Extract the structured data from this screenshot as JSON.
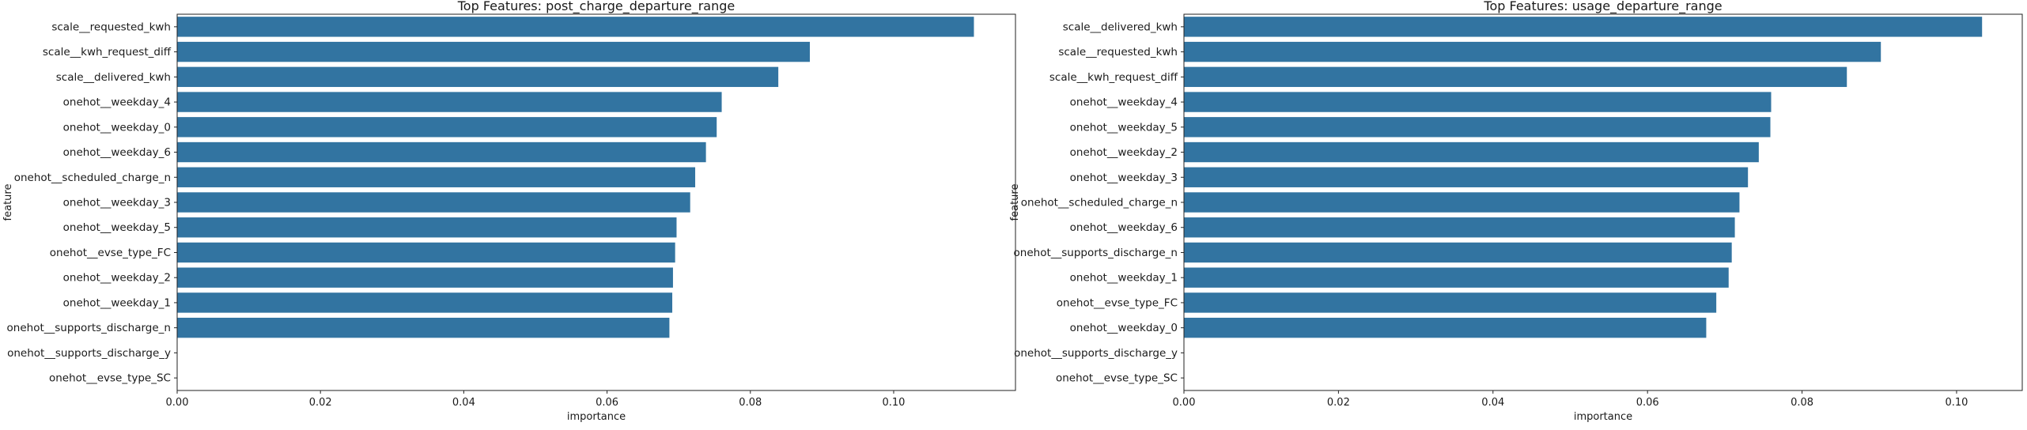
{
  "chart_data": [
    {
      "type": "bar",
      "orientation": "horizontal",
      "title": "Top Features: post_charge_departure_range",
      "xlabel": "importance",
      "ylabel": "feature",
      "xlim": [
        0,
        0.117
      ],
      "xticks": [
        "0.00",
        "0.02",
        "0.04",
        "0.06",
        "0.08",
        "0.10"
      ],
      "grid": false,
      "bar_color": "#3274a1",
      "categories": [
        "scale__requested_kwh",
        "scale__kwh_request_diff",
        "scale__delivered_kwh",
        "onehot__weekday_4",
        "onehot__weekday_0",
        "onehot__weekday_6",
        "onehot__scheduled_charge_n",
        "onehot__weekday_3",
        "onehot__weekday_5",
        "onehot__evse_type_FC",
        "onehot__weekday_2",
        "onehot__weekday_1",
        "onehot__supports_discharge_n",
        "onehot__supports_discharge_y",
        "onehot__evse_type_SC"
      ],
      "values": [
        0.1112,
        0.0883,
        0.0839,
        0.076,
        0.0753,
        0.0738,
        0.0723,
        0.0716,
        0.0697,
        0.0695,
        0.0692,
        0.0691,
        0.0687,
        0,
        0
      ]
    },
    {
      "type": "bar",
      "orientation": "horizontal",
      "title": "Top Features: usage_departure_range",
      "xlabel": "importance",
      "ylabel": "feature",
      "xlim": [
        0,
        0.1085
      ],
      "xticks": [
        "0.00",
        "0.02",
        "0.04",
        "0.06",
        "0.08",
        "0.10"
      ],
      "grid": false,
      "bar_color": "#3274a1",
      "categories": [
        "scale__delivered_kwh",
        "scale__requested_kwh",
        "scale__kwh_request_diff",
        "onehot__weekday_4",
        "onehot__weekday_5",
        "onehot__weekday_2",
        "onehot__weekday_3",
        "onehot__scheduled_charge_n",
        "onehot__weekday_6",
        "onehot__supports_discharge_n",
        "onehot__weekday_1",
        "onehot__evse_type_FC",
        "onehot__weekday_0",
        "onehot__supports_discharge_y",
        "onehot__evse_type_SC"
      ],
      "values": [
        0.1033,
        0.0902,
        0.0858,
        0.076,
        0.0759,
        0.0744,
        0.073,
        0.0719,
        0.0713,
        0.0709,
        0.0705,
        0.0689,
        0.0676,
        0,
        0
      ]
    }
  ]
}
